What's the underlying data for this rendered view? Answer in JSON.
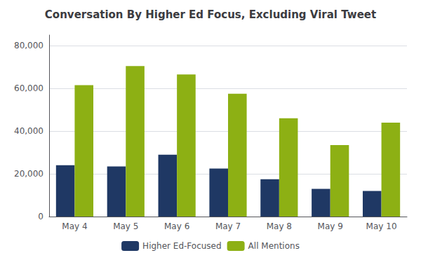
{
  "chart_data": {
    "type": "bar",
    "title": "Conversation By Higher Ed Focus, Excluding Viral Tweet",
    "categories": [
      "May 4",
      "May 5",
      "May 6",
      "May 7",
      "May 8",
      "May 9",
      "May 10"
    ],
    "series": [
      {
        "name": "Higher Ed-Focused",
        "color": "#1f3864",
        "values": [
          24000,
          23500,
          29000,
          22500,
          17500,
          13000,
          12000
        ]
      },
      {
        "name": "All Mentions",
        "color": "#8db014",
        "values": [
          61500,
          70500,
          66500,
          57500,
          46000,
          33500,
          44000
        ]
      }
    ],
    "ylim": [
      0,
      85000
    ],
    "yticks": [
      0,
      {
        "value": 20000,
        "label": "20,000"
      },
      {
        "value": 40000,
        "label": "40,000"
      },
      {
        "value": 60000,
        "label": "60,000"
      },
      {
        "value": 80000,
        "label": "80,000"
      }
    ],
    "grid": true,
    "legend": "bottom"
  }
}
